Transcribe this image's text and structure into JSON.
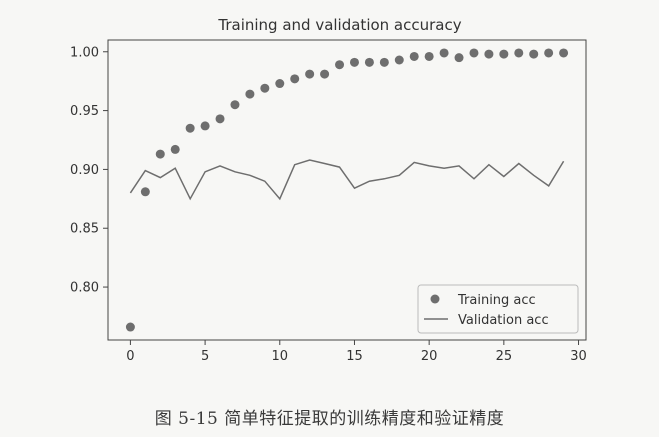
{
  "chart_data": {
    "type": "line",
    "title": "Training and validation accuracy",
    "xlabel": "",
    "ylabel": "",
    "xlim": [
      -1.5,
      30.5
    ],
    "ylim": [
      0.755,
      1.01
    ],
    "xticks": [
      0,
      5,
      10,
      15,
      20,
      25,
      30
    ],
    "yticks": [
      0.8,
      0.85,
      0.9,
      0.95,
      1.0
    ],
    "ytick_labels": [
      "0.80",
      "0.85",
      "0.90",
      "0.95",
      "1.00"
    ],
    "grid": false,
    "legend_position": "lower-right",
    "x": [
      0,
      1,
      2,
      3,
      4,
      5,
      6,
      7,
      8,
      9,
      10,
      11,
      12,
      13,
      14,
      15,
      16,
      17,
      18,
      19,
      20,
      21,
      22,
      23,
      24,
      25,
      26,
      27,
      28,
      29
    ],
    "series": [
      {
        "name": "Training acc",
        "style": "points",
        "color": "#6e6e6e",
        "values": [
          0.766,
          0.881,
          0.913,
          0.917,
          0.935,
          0.937,
          0.943,
          0.955,
          0.964,
          0.969,
          0.973,
          0.977,
          0.981,
          0.981,
          0.989,
          0.991,
          0.991,
          0.991,
          0.993,
          0.996,
          0.996,
          0.999,
          0.995,
          0.999,
          0.998,
          0.998,
          0.999,
          0.998,
          0.999,
          0.999
        ]
      },
      {
        "name": "Validation acc",
        "style": "line",
        "color": "#6e6e6e",
        "values": [
          0.88,
          0.899,
          0.893,
          0.901,
          0.875,
          0.898,
          0.903,
          0.898,
          0.895,
          0.89,
          0.875,
          0.904,
          0.908,
          0.905,
          0.902,
          0.884,
          0.89,
          0.892,
          0.895,
          0.906,
          0.903,
          0.901,
          0.903,
          0.892,
          0.904,
          0.894,
          0.905,
          0.895,
          0.886,
          0.907
        ]
      }
    ]
  },
  "caption": "图 5-15  简单特征提取的训练精度和验证精度"
}
